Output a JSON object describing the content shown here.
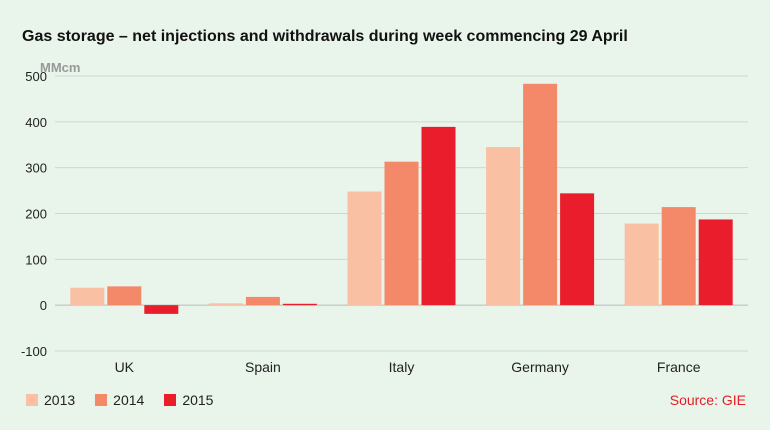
{
  "chart_data": {
    "type": "bar",
    "title": "Gas storage – net injections and withdrawals during week commencing 29 April",
    "ylabel": "MMcm",
    "xlabel": "",
    "ylim": [
      -100,
      500
    ],
    "yticks": [
      -100,
      0,
      100,
      200,
      300,
      400,
      500
    ],
    "grid": true,
    "legend_position": "bottom-left",
    "categories": [
      "UK",
      "Spain",
      "Italy",
      "Germany",
      "France"
    ],
    "series": [
      {
        "name": "2013",
        "color": "#f9c0a4",
        "values": [
          38,
          4,
          248,
          345,
          178
        ]
      },
      {
        "name": "2014",
        "color": "#f4896a",
        "values": [
          41,
          18,
          313,
          483,
          214
        ]
      },
      {
        "name": "2015",
        "color": "#ea1d2c",
        "values": [
          -19,
          3,
          389,
          244,
          187
        ]
      }
    ],
    "source": "Source: GIE"
  }
}
